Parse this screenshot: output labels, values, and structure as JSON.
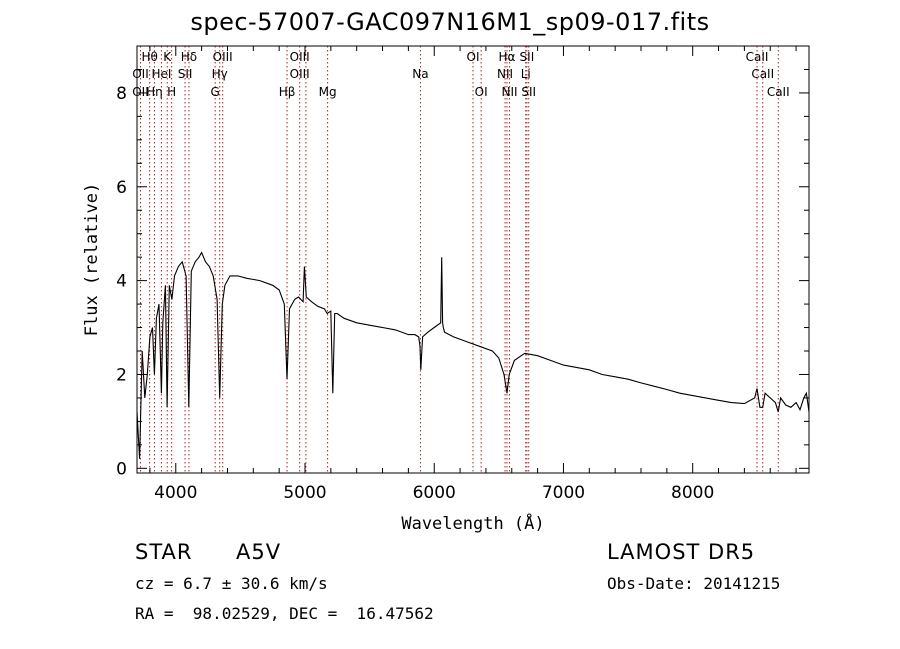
{
  "chart_data": {
    "type": "line",
    "title": "spec-57007-GAC097N16M1_sp09-017.fits",
    "xlabel": "Wavelength (Å)",
    "ylabel": "Flux (relative)",
    "xlim": [
      3700,
      8900
    ],
    "ylim": [
      -0.1,
      9.0
    ],
    "xticks": [
      4000,
      5000,
      6000,
      7000,
      8000
    ],
    "yticks": [
      0,
      2,
      4,
      6,
      8
    ],
    "grid": false,
    "series": [
      {
        "x": [
          3700,
          3720,
          3740,
          3760,
          3780,
          3800,
          3820,
          3835,
          3850,
          3870,
          3889,
          3900,
          3920,
          3933,
          3950,
          3970,
          3990,
          4020,
          4050,
          4080,
          4101,
          4120,
          4150,
          4180,
          4200,
          4230,
          4260,
          4290,
          4320,
          4340,
          4360,
          4380,
          4420,
          4480,
          4550,
          4650,
          4750,
          4800,
          4840,
          4861,
          4880,
          4920,
          4950,
          4985,
          4995,
          5010,
          5050,
          5100,
          5150,
          5172,
          5200,
          5215,
          5230,
          5250,
          5300,
          5400,
          5500,
          5600,
          5700,
          5800,
          5850,
          5880,
          5890,
          5896,
          5910,
          5950,
          6000,
          6050,
          6058,
          6065,
          6070,
          6080,
          6150,
          6250,
          6350,
          6450,
          6500,
          6540,
          6563,
          6580,
          6620,
          6700,
          6800,
          6900,
          7000,
          7100,
          7200,
          7300,
          7400,
          7500,
          7600,
          7700,
          7800,
          7900,
          8000,
          8100,
          8200,
          8300,
          8400,
          8480,
          8498,
          8520,
          8542,
          8560,
          8600,
          8640,
          8662,
          8680,
          8720,
          8760,
          8800,
          8830,
          8860,
          8880,
          8900
        ],
        "y": [
          1.2,
          0.2,
          2.5,
          1.5,
          2.0,
          2.8,
          3.0,
          2.0,
          3.2,
          3.5,
          1.6,
          3.1,
          3.9,
          1.3,
          3.9,
          3.6,
          4.1,
          4.3,
          4.4,
          4.1,
          1.3,
          4.2,
          4.4,
          4.5,
          4.6,
          4.4,
          4.3,
          4.1,
          3.6,
          1.5,
          3.5,
          3.9,
          4.1,
          4.1,
          4.05,
          4.0,
          3.9,
          3.8,
          3.5,
          1.9,
          3.4,
          3.6,
          3.65,
          3.55,
          4.3,
          3.65,
          3.55,
          3.45,
          3.4,
          3.3,
          3.35,
          1.6,
          3.3,
          3.3,
          3.2,
          3.1,
          3.05,
          3.0,
          2.95,
          2.85,
          2.85,
          2.8,
          2.6,
          2.1,
          2.8,
          2.9,
          3.0,
          3.1,
          4.5,
          3.1,
          3.0,
          2.9,
          2.8,
          2.7,
          2.6,
          2.5,
          2.35,
          2.0,
          1.6,
          2.0,
          2.3,
          2.45,
          2.4,
          2.3,
          2.2,
          2.15,
          2.1,
          2.0,
          1.95,
          1.9,
          1.82,
          1.75,
          1.68,
          1.6,
          1.55,
          1.5,
          1.45,
          1.4,
          1.38,
          1.5,
          1.7,
          1.3,
          1.3,
          1.6,
          1.5,
          1.4,
          1.2,
          1.5,
          1.35,
          1.3,
          1.4,
          1.25,
          1.5,
          1.6,
          1.2
        ]
      }
    ],
    "annotations": [
      {
        "label": "Hθ",
        "x": 3798,
        "row": 0
      },
      {
        "label": "K",
        "x": 3934,
        "row": 0
      },
      {
        "label": "Hδ",
        "x": 4102,
        "row": 0
      },
      {
        "label": "OIII",
        "x": 4363,
        "row": 0
      },
      {
        "label": "OIII",
        "x": 4959,
        "row": 0
      },
      {
        "label": "OI",
        "x": 6300,
        "row": 0
      },
      {
        "label": "Hα",
        "x": 6563,
        "row": 0
      },
      {
        "label": "SII",
        "x": 6717,
        "row": 0
      },
      {
        "label": "CaII",
        "x": 8498,
        "row": 0
      },
      {
        "label": "OII",
        "x": 3727,
        "row": 1
      },
      {
        "label": "HeI",
        "x": 3889,
        "row": 1
      },
      {
        "label": "SII",
        "x": 4072,
        "row": 1
      },
      {
        "label": "Hγ",
        "x": 4340,
        "row": 1
      },
      {
        "label": "OIII",
        "x": 4959,
        "row": 1
      },
      {
        "label": "Na",
        "x": 5893,
        "row": 1
      },
      {
        "label": "NII",
        "x": 6548,
        "row": 1
      },
      {
        "label": "Li",
        "x": 6708,
        "row": 1
      },
      {
        "label": "CaII",
        "x": 8542,
        "row": 1
      },
      {
        "label": "OII",
        "x": 3727,
        "row": 2
      },
      {
        "label": "Hη",
        "x": 3835,
        "row": 2
      },
      {
        "label": "H",
        "x": 3968,
        "row": 2
      },
      {
        "label": "G",
        "x": 4305,
        "row": 2
      },
      {
        "label": "Hβ",
        "x": 4861,
        "row": 2
      },
      {
        "label": "Mg",
        "x": 5175,
        "row": 2
      },
      {
        "label": "OI",
        "x": 6363,
        "row": 2
      },
      {
        "label": "NII",
        "x": 6583,
        "row": 2
      },
      {
        "label": "SII",
        "x": 6731,
        "row": 2
      },
      {
        "label": "CaII",
        "x": 8662,
        "row": 2
      }
    ],
    "line_markers": [
      3727,
      3798,
      3835,
      3889,
      3934,
      3968,
      4072,
      4102,
      4305,
      4340,
      4363,
      4861,
      4959,
      5007,
      5175,
      5893,
      6300,
      6363,
      6548,
      6563,
      6583,
      6708,
      6717,
      6731,
      8498,
      8542,
      8662
    ],
    "line_marker_color": "#b22222",
    "spectrum_color": "#000000"
  },
  "info": {
    "object_class": "STAR",
    "subclass": "A5V",
    "survey": "LAMOST DR5",
    "cz": "cz = 6.7 ± 30.6 km/s",
    "obs_date": "Obs-Date: 20141215",
    "coords": "RA =  98.02529, DEC =  16.47562"
  }
}
